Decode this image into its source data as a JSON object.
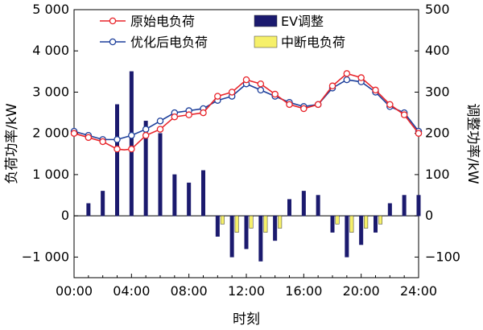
{
  "chart_data": {
    "type": "line+bar",
    "x_hours": [
      0,
      1,
      2,
      3,
      4,
      5,
      6,
      7,
      8,
      9,
      10,
      11,
      12,
      13,
      14,
      15,
      16,
      17,
      18,
      19,
      20,
      21,
      22,
      23,
      24
    ],
    "xticks": [
      "00:00",
      "04:00",
      "08:00",
      "12:00",
      "16:00",
      "20:00",
      "24:00"
    ],
    "xlim": [
      0,
      24
    ],
    "xlabel": "时刻",
    "ylabel_left": "负荷功率/kW",
    "ylabel_right": "调整功率/kW",
    "ylim_left": [
      -1500,
      5000
    ],
    "ylim_right": [
      -150,
      500
    ],
    "yticks_left": [
      "5 000",
      "4 000",
      "3 000",
      "2 000",
      "1 000",
      "0",
      "−1 000"
    ],
    "yticks_left_values": [
      5000,
      4000,
      3000,
      2000,
      1000,
      0,
      -1000
    ],
    "yticks_right": [
      "500",
      "400",
      "300",
      "200",
      "100",
      "0",
      "−100"
    ],
    "yticks_right_values": [
      500,
      400,
      300,
      200,
      100,
      0,
      -100
    ],
    "zero_line": true,
    "grid": false,
    "legend_position": "top-left",
    "legend": {
      "original": "原始电负荷",
      "optimized": "优化后电负荷",
      "ev": "EV调整",
      "interrupt": "中断电负荷"
    },
    "colors": {
      "original": "#e8242a",
      "optimized": "#1d3f9b",
      "ev": "#1b1a6e",
      "interrupt": "#f6f06a"
    },
    "series": {
      "original_load": {
        "name": "原始电负荷",
        "x": [
          0,
          1,
          2,
          3,
          3.5,
          4,
          5,
          6,
          7,
          8,
          9,
          10,
          11,
          12,
          13,
          14,
          15,
          16,
          17,
          18,
          19,
          20,
          21,
          22,
          23,
          24
        ],
        "values": [
          2000,
          1900,
          1800,
          1620,
          1600,
          1620,
          1950,
          2100,
          2400,
          2450,
          2500,
          2900,
          3000,
          3300,
          3200,
          2950,
          2700,
          2600,
          2700,
          3150,
          3450,
          3350,
          3050,
          2700,
          2450,
          2000
        ]
      },
      "optimized_load": {
        "name": "优化后电负荷",
        "x": [
          0,
          1,
          2,
          3,
          4,
          5,
          6,
          7,
          8,
          9,
          10,
          11,
          12,
          13,
          14,
          15,
          16,
          17,
          18,
          19,
          20,
          21,
          22,
          23,
          24
        ],
        "values": [
          2050,
          1950,
          1850,
          1850,
          1950,
          2100,
          2300,
          2500,
          2550,
          2600,
          2800,
          2900,
          3200,
          3050,
          2900,
          2750,
          2650,
          2700,
          3100,
          3300,
          3250,
          3000,
          2650,
          2500,
          2050
        ]
      },
      "ev_adjust": {
        "name": "EV调整",
        "x": [
          1,
          2,
          3,
          4,
          5,
          6,
          7,
          8,
          9,
          10,
          11,
          12,
          13,
          14,
          15,
          16,
          17,
          18,
          19,
          20,
          21,
          22,
          23,
          24
        ],
        "values": [
          30,
          60,
          270,
          350,
          230,
          200,
          100,
          80,
          110,
          -50,
          -100,
          -80,
          -110,
          -60,
          40,
          60,
          50,
          -40,
          -100,
          -70,
          -40,
          30,
          50,
          50
        ]
      },
      "interrupt_load": {
        "name": "中断电负荷",
        "x": [
          10,
          11,
          12,
          13,
          14,
          18,
          19,
          20,
          21
        ],
        "values": [
          -20,
          -40,
          -30,
          -40,
          -30,
          -20,
          -40,
          -30,
          -20
        ]
      }
    }
  }
}
